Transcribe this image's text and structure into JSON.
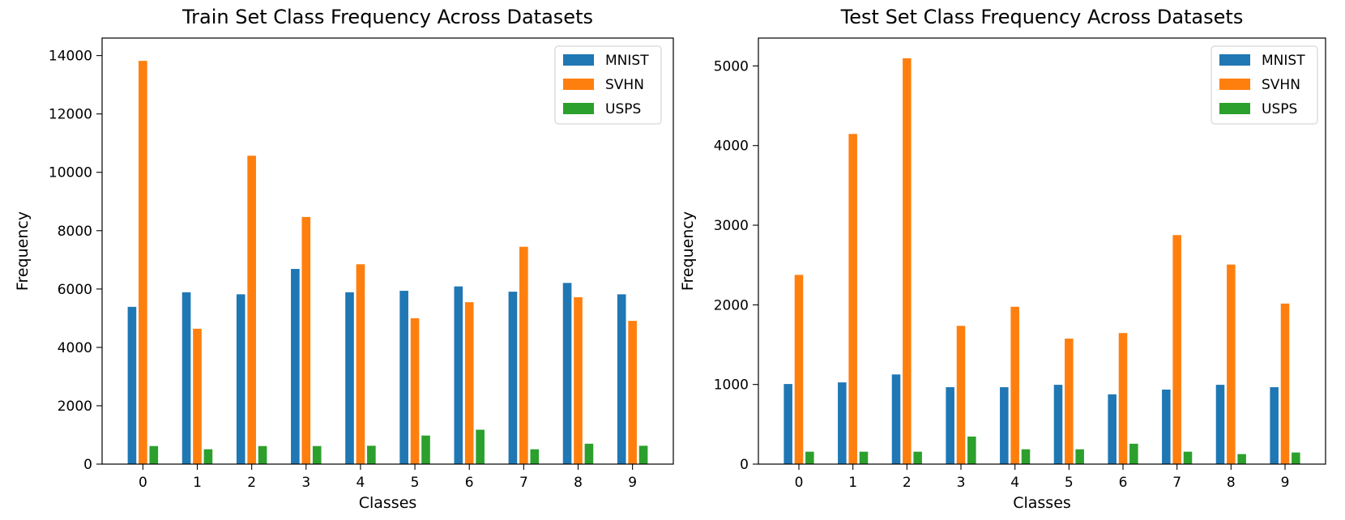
{
  "chart_data": [
    {
      "type": "bar",
      "title": "Train Set Class Frequency Across Datasets",
      "xlabel": "Classes",
      "ylabel": "Frequency",
      "categories": [
        "0",
        "1",
        "2",
        "3",
        "4",
        "5",
        "6",
        "7",
        "8",
        "9"
      ],
      "ylim": [
        0,
        14600
      ],
      "yticks": [
        0,
        2000,
        4000,
        6000,
        8000,
        10000,
        12000,
        14000
      ],
      "legend_position": "top-right",
      "grid": false,
      "series": [
        {
          "name": "MNIST",
          "color": "#1f77b4",
          "values": [
            5400,
            5900,
            5830,
            6700,
            5900,
            5950,
            6100,
            5920,
            6220,
            5830
          ]
        },
        {
          "name": "SVHN",
          "color": "#ff7f0e",
          "values": [
            13830,
            4650,
            10580,
            8480,
            6860,
            5010,
            5560,
            7460,
            5730,
            4920
          ]
        },
        {
          "name": "USPS",
          "color": "#2ca02c",
          "values": [
            630,
            520,
            630,
            630,
            640,
            990,
            1190,
            520,
            710,
            640
          ]
        }
      ]
    },
    {
      "type": "bar",
      "title": "Test Set Class Frequency Across Datasets",
      "xlabel": "Classes",
      "ylabel": "Frequency",
      "categories": [
        "0",
        "1",
        "2",
        "3",
        "4",
        "5",
        "6",
        "7",
        "8",
        "9"
      ],
      "ylim": [
        0,
        5350
      ],
      "yticks": [
        0,
        1000,
        2000,
        3000,
        4000,
        5000
      ],
      "legend_position": "top-right",
      "grid": false,
      "series": [
        {
          "name": "MNIST",
          "color": "#1f77b4",
          "values": [
            1010,
            1030,
            1130,
            970,
            970,
            1000,
            880,
            940,
            1000,
            970
          ]
        },
        {
          "name": "SVHN",
          "color": "#ff7f0e",
          "values": [
            2380,
            4150,
            5100,
            1740,
            1980,
            1580,
            1650,
            2880,
            2510,
            2020
          ]
        },
        {
          "name": "USPS",
          "color": "#2ca02c",
          "values": [
            160,
            160,
            160,
            350,
            190,
            190,
            260,
            160,
            130,
            150
          ]
        }
      ]
    }
  ]
}
